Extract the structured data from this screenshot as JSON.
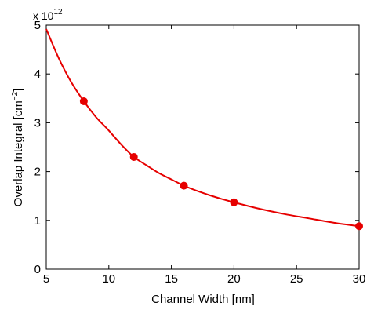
{
  "chart_data": {
    "type": "line",
    "xlabel": "Channel Width [nm]",
    "ylabel": {
      "main": "Overlap Integral [cm",
      "sup": "−2",
      "close": "]"
    },
    "y_multiplier": {
      "base": "x 10",
      "exponent": "12"
    },
    "xlim": [
      5,
      30
    ],
    "ylim": [
      0,
      5
    ],
    "x_ticks": [
      5,
      10,
      15,
      20,
      25,
      30
    ],
    "y_ticks": [
      0,
      1,
      2,
      3,
      4,
      5
    ],
    "grid": false,
    "line_color": "#e60000",
    "series": [
      {
        "x": [
          8,
          12,
          16,
          20,
          30
        ],
        "y": [
          3.44,
          2.3,
          1.71,
          1.37,
          0.88
        ]
      }
    ],
    "fit_curve": {
      "x": [
        5,
        6,
        7,
        8,
        9,
        10,
        11,
        12,
        13,
        14,
        15,
        16,
        17,
        18,
        19,
        20,
        22,
        24,
        26,
        28,
        30
      ],
      "y": [
        4.92,
        4.32,
        3.83,
        3.44,
        3.11,
        2.84,
        2.55,
        2.3,
        2.13,
        1.97,
        1.84,
        1.71,
        1.61,
        1.52,
        1.44,
        1.37,
        1.24,
        1.13,
        1.04,
        0.95,
        0.88
      ]
    }
  }
}
